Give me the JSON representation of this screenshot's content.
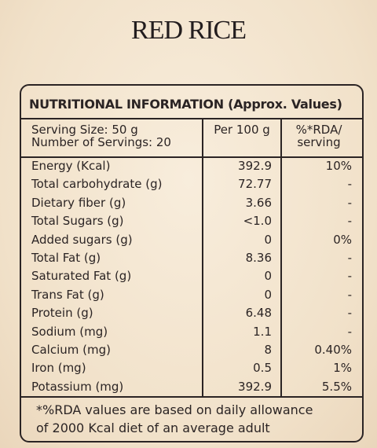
{
  "title": "RED RICE",
  "table": {
    "heading": "NUTRITIONAL INFORMATION (Approx. Values)",
    "header": [
      [
        "Serving Size: 50 g",
        "Number of Servings: 20"
      ],
      [
        "Per 100 g"
      ],
      [
        "%*RDA/",
        "serving"
      ]
    ],
    "rows": [
      [
        "Energy (Kcal)",
        "392.9",
        "10%"
      ],
      [
        "Total carbohydrate (g)",
        "72.77",
        "-"
      ],
      [
        "Dietary fiber (g)",
        "3.66",
        "-"
      ],
      [
        "Total Sugars (g)",
        "<1.0",
        "-"
      ],
      [
        "Added sugars (g)",
        "0",
        "0%"
      ],
      [
        "Total Fat (g)",
        "8.36",
        "-"
      ],
      [
        "Saturated Fat (g)",
        "0",
        "-"
      ],
      [
        "Trans Fat (g)",
        "0",
        "-"
      ],
      [
        "Protein (g)",
        "6.48",
        "-"
      ],
      [
        "Sodium (mg)",
        "1.1",
        "-"
      ],
      [
        "Calcium (mg)",
        "8",
        "0.40%"
      ],
      [
        "Iron (mg)",
        "0.5",
        "1%"
      ],
      [
        "Potassium (mg)",
        "392.9",
        "5.5%"
      ]
    ],
    "footnote": [
      "*%RDA values are based on daily allowance",
      "of 2000 Kcal diet of an average adult"
    ]
  }
}
